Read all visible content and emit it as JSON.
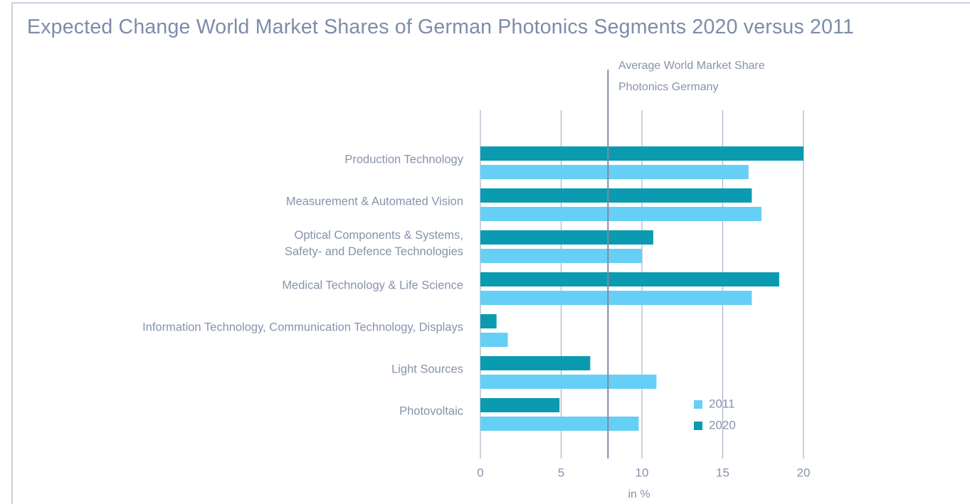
{
  "chart_data": {
    "type": "hbar",
    "title": "Expected Change World Market Shares of German Photonics Segments 2020 versus 2011",
    "categories": [
      "Production Technology",
      "Measurement & Automated Vision",
      "Optical Components & Systems,\nSafety- and Defence Technologies",
      "Medical Technology & Life Science",
      "Information Technology, Communication Technology, Displays",
      "Light Sources",
      "Photovoltaic"
    ],
    "series": [
      {
        "name": "2020",
        "color": "#0b9bb0",
        "values": [
          20,
          16.8,
          10.7,
          18.5,
          1.0,
          6.8,
          4.9
        ]
      },
      {
        "name": "2011",
        "color": "#66cff5",
        "values": [
          16.6,
          17.4,
          10.0,
          16.8,
          1.7,
          10.9,
          9.8
        ]
      }
    ],
    "legend_order": [
      1,
      0
    ],
    "xlim": [
      0,
      20
    ],
    "xticks": [
      0,
      5,
      10,
      15,
      20
    ],
    "xlabel": "in %",
    "grid": true,
    "reference_line": {
      "value": 7.9,
      "label": "Average World Market Share\nPhotonics Germany"
    }
  }
}
